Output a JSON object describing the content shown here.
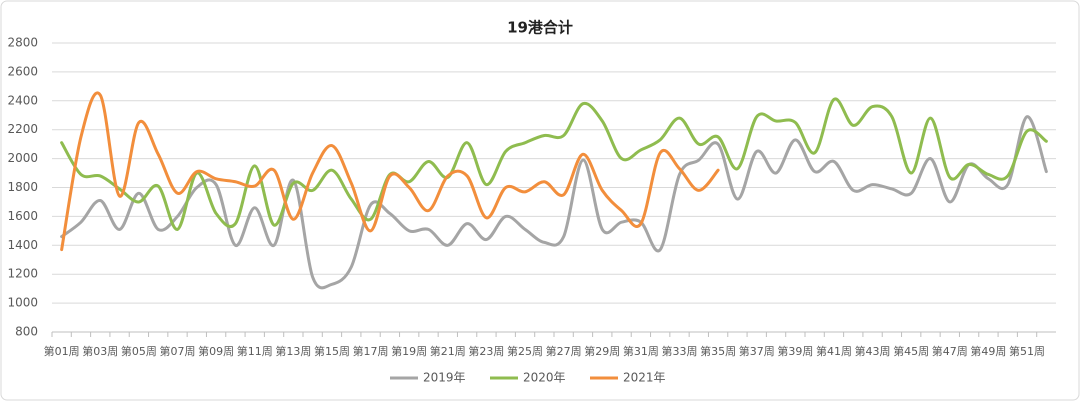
{
  "chart_data": {
    "type": "line",
    "title": "19港合计",
    "categories": [
      "第01周",
      null,
      "第03周",
      null,
      "第05周",
      null,
      "第07周",
      null,
      "第09周",
      null,
      "第11周",
      null,
      "第13周",
      null,
      "第15周",
      null,
      "第17周",
      null,
      "第19周",
      null,
      "第21周",
      null,
      "第23周",
      null,
      "第25周",
      null,
      "第27周",
      null,
      "第29周",
      null,
      "第31周",
      null,
      "第33周",
      null,
      "第35周",
      null,
      "第37周",
      null,
      "第39周",
      null,
      "第41周",
      null,
      "第43周",
      null,
      "第45周",
      null,
      "第47周",
      null,
      "第49周",
      null,
      "第51周",
      null
    ],
    "series": [
      {
        "name": "2019年",
        "color": "#a5a5a5",
        "values": [
          1460,
          1560,
          1710,
          1510,
          1760,
          1510,
          1600,
          1800,
          1820,
          1400,
          1660,
          1400,
          1850,
          1180,
          1130,
          1250,
          1680,
          1620,
          1500,
          1510,
          1400,
          1550,
          1440,
          1600,
          1510,
          1420,
          1460,
          1990,
          1510,
          1560,
          1560,
          1370,
          1890,
          1990,
          2100,
          1720,
          2050,
          1900,
          2130,
          1910,
          1980,
          1780,
          1820,
          1790,
          1760,
          2000,
          1700,
          1960,
          1860,
          1820,
          2290,
          1910
        ]
      },
      {
        "name": "2020年",
        "color": "#8fbc4f",
        "values": [
          2110,
          1890,
          1880,
          1790,
          1700,
          1810,
          1510,
          1900,
          1620,
          1550,
          1950,
          1540,
          1830,
          1780,
          1920,
          1720,
          1580,
          1890,
          1840,
          1980,
          1870,
          2110,
          1820,
          2050,
          2110,
          2160,
          2160,
          2380,
          2260,
          2000,
          2060,
          2130,
          2280,
          2100,
          2150,
          1930,
          2290,
          2260,
          2250,
          2040,
          2410,
          2230,
          2360,
          2290,
          1900,
          2280,
          1870,
          1960,
          1890,
          1880,
          2190,
          2120
        ]
      },
      {
        "name": "2021年",
        "color": "#f28e3c",
        "values": [
          1370,
          2150,
          2440,
          1740,
          2250,
          2030,
          1760,
          1910,
          1860,
          1840,
          1810,
          1920,
          1580,
          1900,
          2090,
          1830,
          1500,
          1880,
          1800,
          1640,
          1880,
          1880,
          1590,
          1800,
          1770,
          1840,
          1750,
          2030,
          1780,
          1640,
          1550,
          2040,
          1930,
          1780,
          1920,
          null,
          null,
          null,
          null,
          null,
          null,
          null,
          null,
          null,
          null,
          null,
          null,
          null,
          null,
          null,
          null,
          null
        ]
      }
    ],
    "ylim": [
      800,
      2800
    ],
    "yticks": [
      800,
      1000,
      1200,
      1400,
      1600,
      1800,
      2000,
      2200,
      2400,
      2600,
      2800
    ],
    "grid": true,
    "legend": "bottom"
  }
}
